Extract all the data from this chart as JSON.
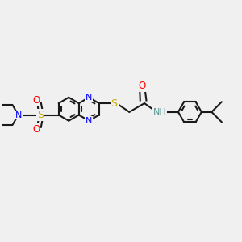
{
  "bg_color": "#f0f0f0",
  "bond_color": "#1a1a1a",
  "atom_colors": {
    "N": "#0000ff",
    "S": "#ccaa00",
    "O": "#ff0000",
    "NH": "#5a9a9a"
  },
  "figsize": [
    3.0,
    3.0
  ],
  "dpi": 100
}
